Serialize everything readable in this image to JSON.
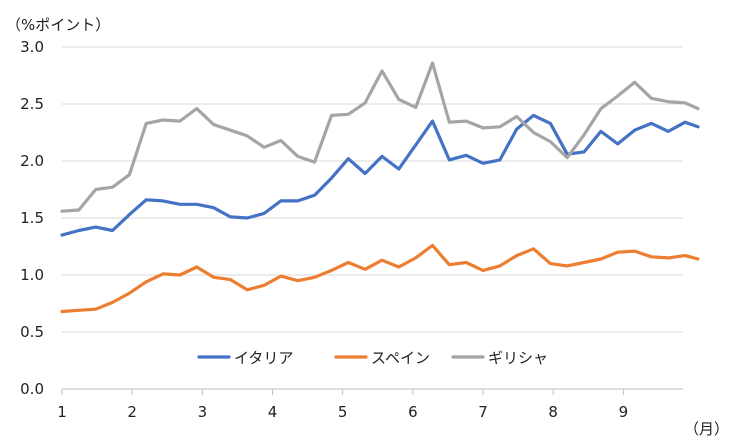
{
  "chart_data": {
    "type": "line",
    "y_unit_label": "（%ポイント）",
    "x_unit_label": "（月）",
    "ylim": [
      0,
      3.0
    ],
    "y_ticks": [
      "0.0",
      "0.5",
      "1.0",
      "1.5",
      "2.0",
      "2.5",
      "3.0"
    ],
    "x_ticks": [
      "1",
      "2",
      "3",
      "4",
      "5",
      "6",
      "7",
      "8",
      "9"
    ],
    "xlim": [
      1,
      9.85
    ],
    "grid": true,
    "legend_position": "bottom-center",
    "series": [
      {
        "name": "イタリア",
        "color": "#4472C4",
        "points": [
          [
            1.0,
            1.35
          ],
          [
            1.24,
            1.39
          ],
          [
            1.48,
            1.42
          ],
          [
            1.72,
            1.39
          ],
          [
            1.96,
            1.53
          ],
          [
            2.2,
            1.66
          ],
          [
            2.44,
            1.65
          ],
          [
            2.68,
            1.62
          ],
          [
            2.92,
            1.62
          ],
          [
            3.16,
            1.59
          ],
          [
            3.4,
            1.51
          ],
          [
            3.64,
            1.5
          ],
          [
            3.88,
            1.54
          ],
          [
            4.12,
            1.65
          ],
          [
            4.36,
            1.65
          ],
          [
            4.6,
            1.7
          ],
          [
            4.84,
            1.85
          ],
          [
            5.08,
            2.02
          ],
          [
            5.32,
            1.89
          ],
          [
            5.56,
            2.04
          ],
          [
            5.8,
            1.93
          ],
          [
            6.04,
            2.14
          ],
          [
            6.28,
            2.35
          ],
          [
            6.52,
            2.01
          ],
          [
            6.76,
            2.05
          ],
          [
            7.0,
            1.98
          ],
          [
            7.24,
            2.01
          ],
          [
            7.48,
            2.28
          ],
          [
            7.72,
            2.4
          ],
          [
            7.96,
            2.33
          ],
          [
            8.2,
            2.06
          ],
          [
            8.44,
            2.08
          ],
          [
            8.68,
            2.26
          ],
          [
            8.92,
            2.15
          ],
          [
            9.16,
            2.27
          ],
          [
            9.4,
            2.33
          ],
          [
            9.64,
            2.26
          ],
          [
            9.88,
            2.34
          ],
          [
            10.12,
            2.3
          ]
        ]
      },
      {
        "name": "スペイン",
        "color": "#ED7D31",
        "points": [
          [
            1.0,
            0.68
          ],
          [
            1.24,
            0.69
          ],
          [
            1.48,
            0.7
          ],
          [
            1.72,
            0.76
          ],
          [
            1.96,
            0.84
          ],
          [
            2.2,
            0.94
          ],
          [
            2.44,
            1.01
          ],
          [
            2.68,
            1.0
          ],
          [
            2.92,
            1.07
          ],
          [
            3.16,
            0.98
          ],
          [
            3.4,
            0.96
          ],
          [
            3.64,
            0.87
          ],
          [
            3.88,
            0.91
          ],
          [
            4.12,
            0.99
          ],
          [
            4.36,
            0.95
          ],
          [
            4.6,
            0.98
          ],
          [
            4.84,
            1.04
          ],
          [
            5.08,
            1.11
          ],
          [
            5.32,
            1.05
          ],
          [
            5.56,
            1.13
          ],
          [
            5.8,
            1.07
          ],
          [
            6.04,
            1.15
          ],
          [
            6.28,
            1.26
          ],
          [
            6.52,
            1.09
          ],
          [
            6.76,
            1.11
          ],
          [
            7.0,
            1.04
          ],
          [
            7.24,
            1.08
          ],
          [
            7.48,
            1.17
          ],
          [
            7.72,
            1.23
          ],
          [
            7.96,
            1.1
          ],
          [
            8.2,
            1.08
          ],
          [
            8.44,
            1.11
          ],
          [
            8.68,
            1.14
          ],
          [
            8.92,
            1.2
          ],
          [
            9.16,
            1.21
          ],
          [
            9.4,
            1.16
          ],
          [
            9.64,
            1.15
          ],
          [
            9.88,
            1.17
          ],
          [
            10.12,
            1.14
          ]
        ]
      },
      {
        "name": "ギリシャ",
        "color": "#A5A5A5",
        "points": [
          [
            1.0,
            1.56
          ],
          [
            1.24,
            1.57
          ],
          [
            1.48,
            1.75
          ],
          [
            1.72,
            1.77
          ],
          [
            1.96,
            1.88
          ],
          [
            2.2,
            2.33
          ],
          [
            2.44,
            2.36
          ],
          [
            2.68,
            2.35
          ],
          [
            2.92,
            2.46
          ],
          [
            3.16,
            2.32
          ],
          [
            3.4,
            2.27
          ],
          [
            3.64,
            2.22
          ],
          [
            3.88,
            2.12
          ],
          [
            4.12,
            2.18
          ],
          [
            4.36,
            2.04
          ],
          [
            4.6,
            1.99
          ],
          [
            4.84,
            2.4
          ],
          [
            5.08,
            2.41
          ],
          [
            5.32,
            2.51
          ],
          [
            5.56,
            2.79
          ],
          [
            5.8,
            2.54
          ],
          [
            6.04,
            2.47
          ],
          [
            6.28,
            2.86
          ],
          [
            6.52,
            2.34
          ],
          [
            6.76,
            2.35
          ],
          [
            7.0,
            2.29
          ],
          [
            7.24,
            2.3
          ],
          [
            7.48,
            2.39
          ],
          [
            7.72,
            2.25
          ],
          [
            7.96,
            2.17
          ],
          [
            8.2,
            2.03
          ],
          [
            8.44,
            2.23
          ],
          [
            8.68,
            2.46
          ],
          [
            8.92,
            2.57
          ],
          [
            9.16,
            2.69
          ],
          [
            9.4,
            2.55
          ],
          [
            9.64,
            2.52
          ],
          [
            9.88,
            2.51
          ],
          [
            10.12,
            2.46
          ]
        ]
      }
    ]
  }
}
